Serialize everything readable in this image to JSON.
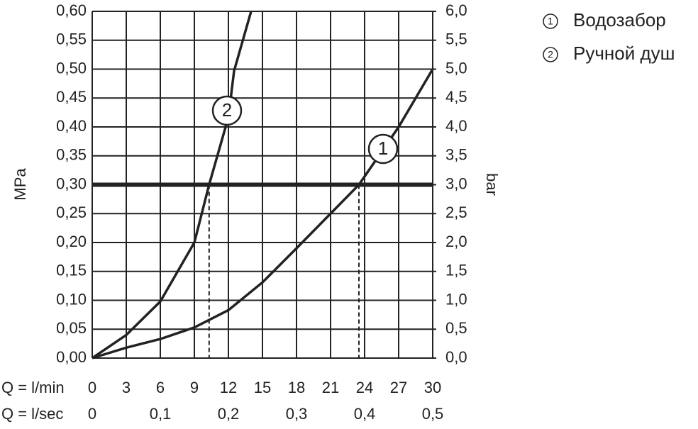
{
  "chart_data": {
    "type": "line",
    "y_label": "MPa",
    "y2_label": "bar",
    "x_label": "Q = l/min",
    "x2_label": "Q = l/sec",
    "xlim": [
      0,
      30
    ],
    "xticks": [
      0,
      3,
      6,
      9,
      12,
      15,
      18,
      21,
      24,
      27,
      30
    ],
    "x2lim": [
      0,
      0.5
    ],
    "x2ticks": [
      0,
      {
        "value": 0.1,
        "label": "0,1"
      },
      {
        "value": 0.2,
        "label": "0,2"
      },
      {
        "value": 0.3,
        "label": "0,3"
      },
      {
        "value": 0.4,
        "label": "0,4"
      },
      {
        "value": 0.5,
        "label": "0,5"
      }
    ],
    "ylim": [
      0,
      0.6
    ],
    "yticks": [
      {
        "value": 0,
        "label": "0,00"
      },
      {
        "value": 0.05,
        "label": "0,05"
      },
      {
        "value": 0.1,
        "label": "0,10"
      },
      {
        "value": 0.15,
        "label": "0,15"
      },
      {
        "value": 0.2,
        "label": "0,20"
      },
      {
        "value": 0.25,
        "label": "0,25"
      },
      {
        "value": 0.3,
        "label": "0,30"
      },
      {
        "value": 0.35,
        "label": "0,35"
      },
      {
        "value": 0.4,
        "label": "0,40"
      },
      {
        "value": 0.45,
        "label": "0,45"
      },
      {
        "value": 0.5,
        "label": "0,50"
      },
      {
        "value": 0.55,
        "label": "0,55"
      },
      {
        "value": 0.6,
        "label": "0,60"
      }
    ],
    "y2lim": [
      0,
      6
    ],
    "y2ticks": [
      {
        "value": 0,
        "label": "0,0"
      },
      {
        "value": 0.5,
        "label": "0,5"
      },
      {
        "value": 1,
        "label": "1,0"
      },
      {
        "value": 1.5,
        "label": "1,5"
      },
      {
        "value": 2,
        "label": "2,0"
      },
      {
        "value": 2.5,
        "label": "2,5"
      },
      {
        "value": 3,
        "label": "3,0"
      },
      {
        "value": 3.5,
        "label": "3,5"
      },
      {
        "value": 4,
        "label": "4,0"
      },
      {
        "value": 4.5,
        "label": "4,5"
      },
      {
        "value": 5,
        "label": "5,0"
      },
      {
        "value": 5.5,
        "label": "5,5"
      },
      {
        "value": 6,
        "label": "6,0"
      }
    ],
    "grid": true,
    "hline": 0.3,
    "vlines": [
      10.3,
      23.5
    ],
    "series": [
      {
        "name": "Водозабор",
        "label": "1",
        "color": "#222222",
        "x": [
          0,
          3,
          6,
          9,
          12,
          15,
          18,
          21,
          23.5,
          27,
          30
        ],
        "values": [
          0,
          0.018,
          0.033,
          0.053,
          0.083,
          0.131,
          0.19,
          0.25,
          0.3,
          0.4,
          0.5
        ]
      },
      {
        "name": "Ручной душ",
        "label": "2",
        "color": "#222222",
        "x": [
          0,
          3,
          6,
          9,
          10.3,
          12,
          12.5,
          14
        ],
        "values": [
          0,
          0.04,
          0.098,
          0.2,
          0.3,
          0.417,
          0.497,
          0.6
        ]
      }
    ]
  }
}
